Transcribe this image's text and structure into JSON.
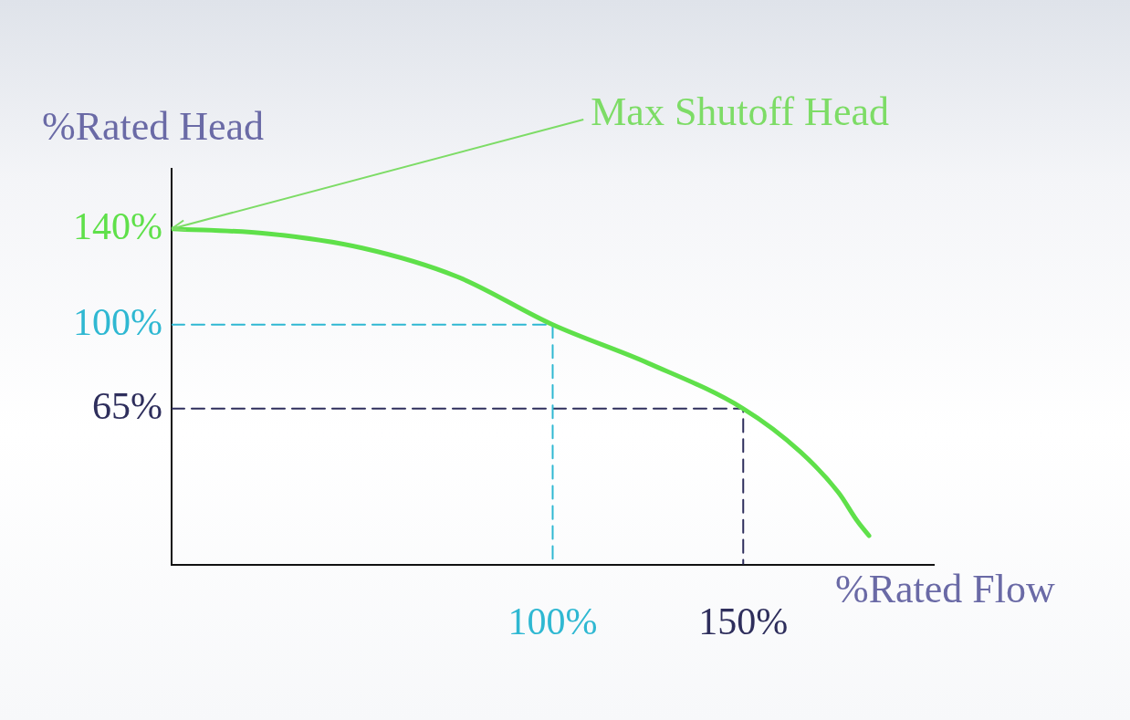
{
  "chart_data": {
    "type": "line",
    "xlabel": "%Rated Flow",
    "ylabel": "%Rated Head",
    "annotations": [
      {
        "text": "Max Shutoff Head",
        "x": 0,
        "y": 140
      }
    ],
    "xlim": [
      0,
      200
    ],
    "ylim": [
      0,
      165
    ],
    "xticks": [
      {
        "value": 100,
        "label": "100%"
      },
      {
        "value": 150,
        "label": "150%"
      }
    ],
    "yticks": [
      {
        "value": 65,
        "label": "65%"
      },
      {
        "value": 100,
        "label": "100%"
      },
      {
        "value": 140,
        "label": "140%"
      }
    ],
    "grid": false,
    "legend": false,
    "marker": "none",
    "series": [
      {
        "color": "#5fe04a",
        "x": [
          0,
          25,
          50,
          75,
          100,
          125,
          150,
          165,
          175,
          180,
          183
        ],
        "values": [
          140,
          138,
          132,
          120,
          100,
          84,
          65,
          47,
          30,
          18,
          12
        ]
      },
      {
        "color": "#2fb8d2",
        "x": [
          0,
          100,
          100
        ],
        "values": [
          100,
          100,
          0
        ],
        "line_style": "dashed"
      },
      {
        "color": "#2e2e5c",
        "x": [
          0,
          150,
          150
        ],
        "values": [
          65,
          65,
          0
        ],
        "line_style": "dashed"
      }
    ]
  }
}
